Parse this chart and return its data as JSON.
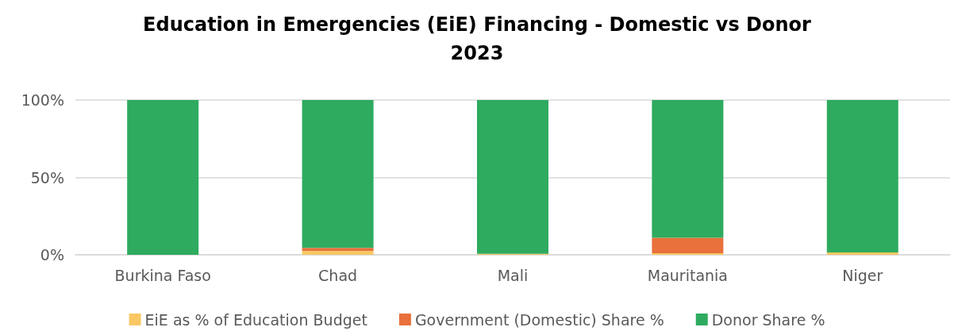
{
  "chart_data": {
    "type": "bar",
    "title": "Education in Emergencies (EiE) Financing - Domestic vs Donor\n2023",
    "categories": [
      "Burkina Faso",
      "Chad",
      "Mali",
      "Mauritania",
      "Niger"
    ],
    "stacked": true,
    "series": [
      {
        "name": "EiE as % of Education Budget",
        "color": "#f9c863",
        "values": [
          0,
          2.5,
          0.7,
          1,
          1.5
        ]
      },
      {
        "name": "Government (Domestic) Share %",
        "color": "#e8713c",
        "values": [
          0,
          2,
          0,
          10,
          0
        ]
      },
      {
        "name": "Donor Share %",
        "color": "#2eab5f",
        "values": [
          100,
          95.5,
          99.3,
          89,
          98.5
        ]
      }
    ],
    "ylim": [
      0,
      100
    ],
    "yticks": [
      {
        "value": 0,
        "label": "0%"
      },
      {
        "value": 50,
        "label": "50%"
      },
      {
        "value": 100,
        "label": "100%"
      }
    ],
    "grid": "y",
    "legend": "bottom"
  }
}
